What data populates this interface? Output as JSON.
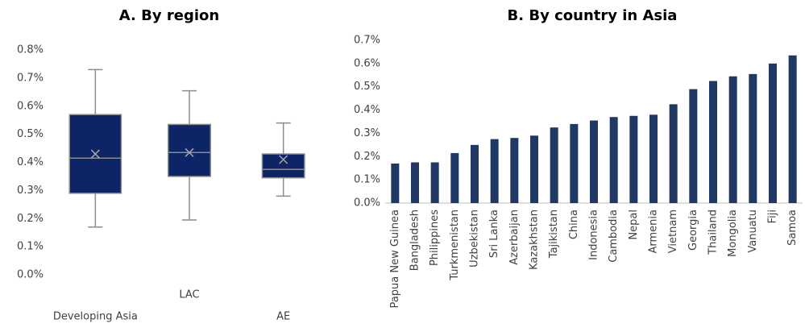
{
  "chart_data": [
    {
      "type": "box",
      "title": "A. By region",
      "categories": [
        "Developing Asia",
        "LAC",
        "AE"
      ],
      "min": [
        0.17,
        0.195,
        0.28
      ],
      "q1": [
        0.29,
        0.35,
        0.345
      ],
      "median": [
        0.415,
        0.435,
        0.375
      ],
      "q3": [
        0.57,
        0.535,
        0.43
      ],
      "max": [
        0.73,
        0.655,
        0.54
      ],
      "mean": [
        0.43,
        0.435,
        0.41
      ],
      "color": "#0d2466",
      "ylim": [
        0,
        0.8
      ],
      "yticks": [
        {
          "value": 0,
          "label": "0.0%"
        },
        {
          "value": 0.1,
          "label": "0.1%"
        },
        {
          "value": 0.2,
          "label": "0.2%"
        },
        {
          "value": 0.3,
          "label": "0.3%"
        },
        {
          "value": 0.4,
          "label": "0.4%"
        },
        {
          "value": 0.5,
          "label": "0.5%"
        },
        {
          "value": 0.6,
          "label": "0.6%"
        },
        {
          "value": 0.7,
          "label": "0.7%"
        },
        {
          "value": 0.8,
          "label": "0.8%"
        }
      ]
    },
    {
      "type": "bar",
      "title": "B. By country in Asia",
      "categories": [
        "Papua New Guinea",
        "Bangladesh",
        "Philippines",
        "Turkmenistan",
        "Uzbekistan",
        "Sri Lanka",
        "Azerbaijan",
        "Kazakhstan",
        "Tajikistan",
        "China",
        "Indonesia",
        "Cambodia",
        "Nepal",
        "Armenia",
        "Vietnam",
        "Georgia",
        "Thailand",
        "Mongolia",
        "Vanuatu",
        "Fiji",
        "Samoa"
      ],
      "values": [
        0.17,
        0.175,
        0.175,
        0.215,
        0.25,
        0.275,
        0.28,
        0.29,
        0.325,
        0.34,
        0.355,
        0.37,
        0.375,
        0.38,
        0.425,
        0.49,
        0.525,
        0.545,
        0.555,
        0.6,
        0.635
      ],
      "color": "#1f3864",
      "ylim": [
        0,
        0.7
      ],
      "yticks": [
        {
          "value": 0,
          "label": "0.0%"
        },
        {
          "value": 0.1,
          "label": "0.1%"
        },
        {
          "value": 0.2,
          "label": "0.2%"
        },
        {
          "value": 0.3,
          "label": "0.3%"
        },
        {
          "value": 0.4,
          "label": "0.4%"
        },
        {
          "value": 0.5,
          "label": "0.5%"
        },
        {
          "value": 0.6,
          "label": "0.6%"
        },
        {
          "value": 0.7,
          "label": "0.7%"
        }
      ]
    }
  ]
}
